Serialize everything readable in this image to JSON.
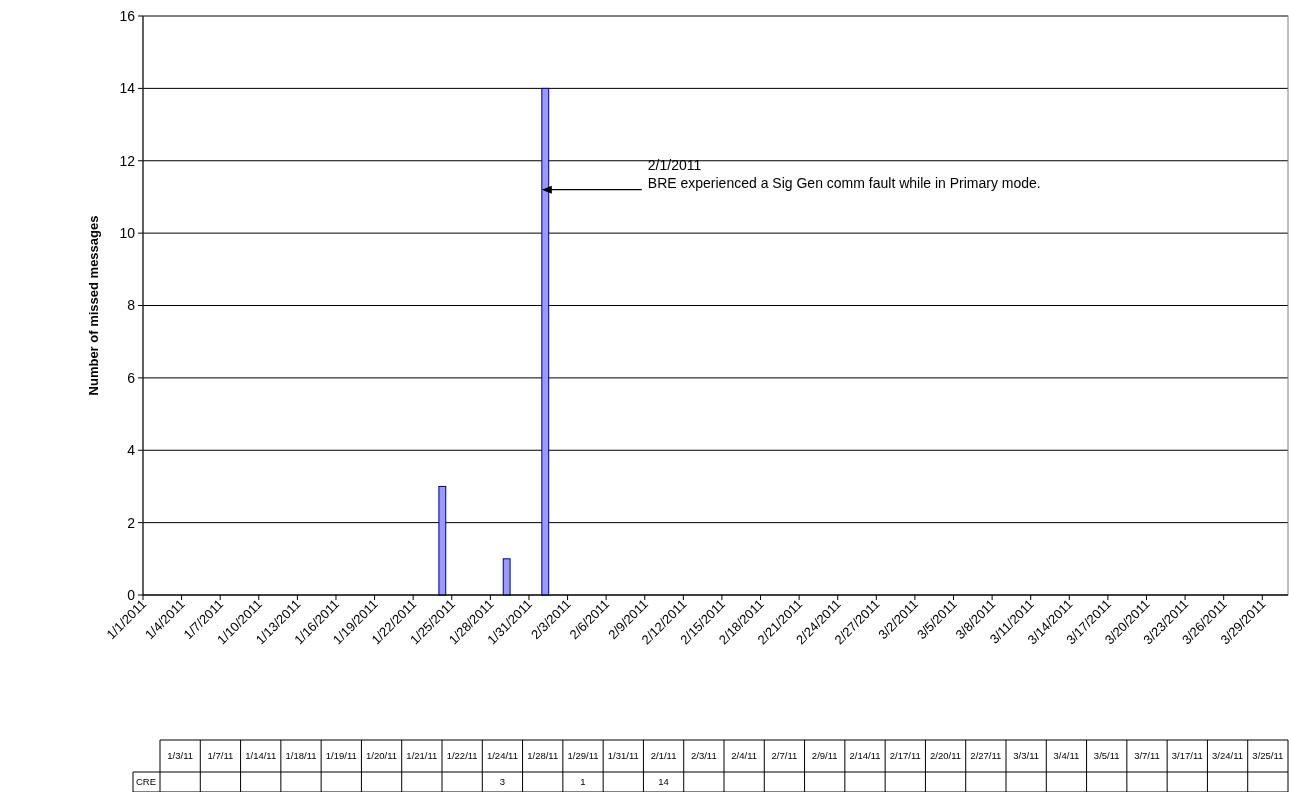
{
  "chart_data": [
    {
      "type": "bar",
      "ylabel": "Number of missed messages",
      "xlim": [
        "2011-01-01",
        "2011-03-31"
      ],
      "xticks": [
        {
          "value": "2011-01-01",
          "label": "1/1/2011"
        },
        {
          "value": "2011-01-04",
          "label": "1/4/2011"
        },
        {
          "value": "2011-01-07",
          "label": "1/7/2011"
        },
        {
          "value": "2011-01-10",
          "label": "1/10/2011"
        },
        {
          "value": "2011-01-13",
          "label": "1/13/2011"
        },
        {
          "value": "2011-01-16",
          "label": "1/16/2011"
        },
        {
          "value": "2011-01-19",
          "label": "1/19/2011"
        },
        {
          "value": "2011-01-22",
          "label": "1/22/2011"
        },
        {
          "value": "2011-01-25",
          "label": "1/25/2011"
        },
        {
          "value": "2011-01-28",
          "label": "1/28/2011"
        },
        {
          "value": "2011-01-31",
          "label": "1/31/2011"
        },
        {
          "value": "2011-02-03",
          "label": "2/3/2011"
        },
        {
          "value": "2011-02-06",
          "label": "2/6/2011"
        },
        {
          "value": "2011-02-09",
          "label": "2/9/2011"
        },
        {
          "value": "2011-02-12",
          "label": "2/12/2011"
        },
        {
          "value": "2011-02-15",
          "label": "2/15/2011"
        },
        {
          "value": "2011-02-18",
          "label": "2/18/2011"
        },
        {
          "value": "2011-02-21",
          "label": "2/21/2011"
        },
        {
          "value": "2011-02-24",
          "label": "2/24/2011"
        },
        {
          "value": "2011-02-27",
          "label": "2/27/2011"
        },
        {
          "value": "2011-03-02",
          "label": "3/2/2011"
        },
        {
          "value": "2011-03-05",
          "label": "3/5/2011"
        },
        {
          "value": "2011-03-08",
          "label": "3/8/2011"
        },
        {
          "value": "2011-03-11",
          "label": "3/11/2011"
        },
        {
          "value": "2011-03-14",
          "label": "3/14/2011"
        },
        {
          "value": "2011-03-17",
          "label": "3/17/2011"
        },
        {
          "value": "2011-03-20",
          "label": "3/20/2011"
        },
        {
          "value": "2011-03-23",
          "label": "3/23/2011"
        },
        {
          "value": "2011-03-26",
          "label": "3/26/2011"
        },
        {
          "value": "2011-03-29",
          "label": "3/29/2011"
        }
      ],
      "ylim": [
        0,
        16
      ],
      "yticks": [
        0,
        2,
        4,
        6,
        8,
        10,
        12,
        14,
        16
      ],
      "grid": "y",
      "series": [
        {
          "color": "#9999ff",
          "x": [
            "2011-01-24",
            "2011-01-29",
            "2011-02-01"
          ],
          "values": [
            3,
            1,
            14
          ]
        }
      ],
      "annotations": [
        {
          "text": "2/1/2011\nBRE experienced a Sig Gen comm fault while in Primary mode.",
          "x": "2011-02-01",
          "y": 11.2
        }
      ]
    },
    {
      "type": "other",
      "categories": [
        "1/3/11",
        "1/7/11",
        "1/14/11",
        "1/18/11",
        "1/19/11",
        "1/20/11",
        "1/21/11",
        "1/22/11",
        "1/24/11",
        "1/28/11",
        "1/29/11",
        "1/31/11",
        "2/1/11",
        "2/3/11",
        "2/4/11",
        "2/7/11",
        "2/9/11",
        "2/14/11",
        "2/17/11",
        "2/20/11",
        "2/27/11",
        "3/3/11",
        "3/4/11",
        "3/5/11",
        "3/7/11",
        "3/17/11",
        "3/24/11",
        "3/25/11"
      ],
      "series": [
        {
          "name": "CRE",
          "values": [
            null,
            null,
            null,
            null,
            null,
            null,
            null,
            null,
            3,
            null,
            1,
            null,
            14,
            null,
            null,
            null,
            null,
            null,
            null,
            null,
            null,
            null,
            null,
            null,
            null,
            null,
            null,
            null
          ]
        }
      ],
      "data_labels": true
    }
  ]
}
